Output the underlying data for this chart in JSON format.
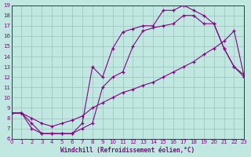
{
  "bg_color": "#c0e8e0",
  "grid_color": "#a0c8c0",
  "line_color": "#880088",
  "xlabel": "Windchill (Refroidissement éolien,°C)",
  "xlim": [
    0,
    23
  ],
  "ylim": [
    6,
    19
  ],
  "xticks": [
    0,
    1,
    2,
    3,
    4,
    5,
    6,
    7,
    8,
    9,
    10,
    11,
    12,
    13,
    14,
    15,
    16,
    17,
    18,
    19,
    20,
    21,
    22,
    23
  ],
  "yticks": [
    6,
    7,
    8,
    9,
    10,
    11,
    12,
    13,
    14,
    15,
    16,
    17,
    18,
    19
  ],
  "curve1_x": [
    0,
    1,
    2,
    3,
    4,
    5,
    6,
    7,
    8,
    9,
    10,
    11,
    12,
    13,
    14,
    15,
    16,
    17,
    18,
    19,
    20,
    21,
    22,
    23
  ],
  "curve1_y": [
    8.5,
    8.5,
    7.0,
    6.5,
    6.5,
    6.5,
    6.5,
    7.5,
    13.0,
    12.0,
    14.8,
    16.4,
    16.7,
    17.0,
    17.0,
    18.5,
    18.5,
    19.0,
    18.5,
    18.0,
    17.2,
    14.8,
    13.0,
    12.0
  ],
  "curve2_x": [
    0,
    1,
    2,
    3,
    4,
    5,
    6,
    7,
    8,
    9,
    10,
    11,
    12,
    13,
    14,
    15,
    16,
    17,
    18,
    19,
    20,
    21,
    22,
    23
  ],
  "curve2_y": [
    8.5,
    8.5,
    7.5,
    6.5,
    6.5,
    6.5,
    6.5,
    7.0,
    7.5,
    11.0,
    12.0,
    12.5,
    15.0,
    16.5,
    16.8,
    17.0,
    17.2,
    18.0,
    18.0,
    17.2,
    17.2,
    14.8,
    13.0,
    12.2
  ],
  "curve3_x": [
    0,
    1,
    2,
    3,
    4,
    5,
    6,
    7,
    8,
    9,
    10,
    11,
    12,
    13,
    14,
    15,
    16,
    17,
    18,
    19,
    20,
    21,
    22,
    23
  ],
  "curve3_y": [
    8.5,
    8.5,
    8.0,
    7.5,
    7.2,
    7.5,
    7.8,
    8.2,
    9.0,
    9.5,
    10.0,
    10.5,
    10.8,
    11.2,
    11.5,
    12.0,
    12.5,
    13.0,
    13.5,
    14.2,
    14.8,
    15.5,
    16.5,
    12.0
  ]
}
